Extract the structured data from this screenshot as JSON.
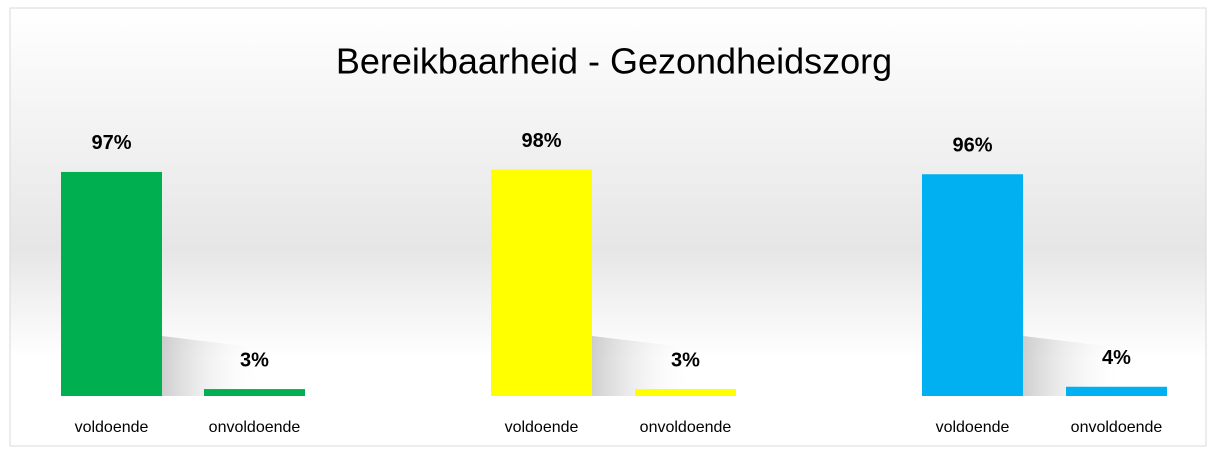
{
  "title": "Bereikbaarheid - Gezondheidszorg",
  "chart_data": [
    {
      "type": "bar",
      "categories": [
        "voldoende",
        "onvoldoende"
      ],
      "values": [
        97,
        3
      ],
      "value_labels": [
        "97%",
        "3%"
      ],
      "color": "#00b050"
    },
    {
      "type": "bar",
      "categories": [
        "voldoende",
        "onvoldoende"
      ],
      "values": [
        98,
        3
      ],
      "value_labels": [
        "98%",
        "3%"
      ],
      "color": "#ffff00"
    },
    {
      "type": "bar",
      "categories": [
        "voldoende",
        "onvoldoende"
      ],
      "values": [
        96,
        4
      ],
      "value_labels": [
        "96%",
        "4%"
      ],
      "color": "#00b0f0"
    }
  ]
}
